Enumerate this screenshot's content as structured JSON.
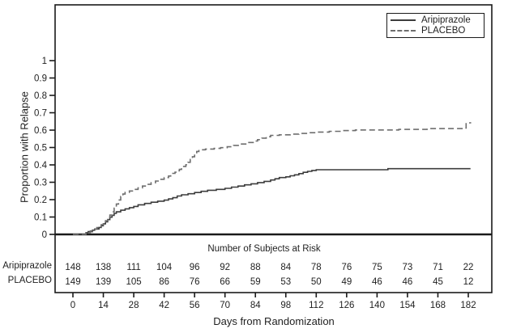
{
  "axes": {
    "x_title": "Days from Randomization",
    "y_title": "Proportion with Relapse"
  },
  "legend": {
    "items": [
      {
        "label": "Aripiprazole",
        "style": "solid"
      },
      {
        "label": "PLACEBO",
        "style": "dashed"
      }
    ]
  },
  "colors": {
    "frame": "#1a1a1a",
    "text": "#1f1f1f",
    "solid_series": "#3c3c3c",
    "dashed_series": "#6e6e6e"
  },
  "chart_data": {
    "type": "line",
    "subtype": "kaplan-meier-step",
    "title": "",
    "xlabel": "Days from Randomization",
    "ylabel": "Proportion with Relapse",
    "xlim": [
      0,
      183
    ],
    "ylim": [
      0,
      1
    ],
    "grid": false,
    "legend_position": "top-right",
    "x_ticks": [
      0,
      14,
      28,
      42,
      56,
      70,
      84,
      98,
      112,
      126,
      140,
      154,
      168,
      182
    ],
    "y_tick_labels": [
      "0",
      "0.1",
      "0.2",
      "0.3",
      "0.4",
      "0.5",
      "0.6",
      "0.7",
      "0.8",
      "0.9",
      "1"
    ],
    "series": [
      {
        "name": "Aripiprazole",
        "line_style": "solid",
        "color": "#3c3c3c",
        "steps": [
          [
            0,
            0
          ],
          [
            5,
            0
          ],
          [
            6,
            0.01
          ],
          [
            7,
            0.016
          ],
          [
            9,
            0.024
          ],
          [
            10,
            0.031
          ],
          [
            12,
            0.04
          ],
          [
            13,
            0.05
          ],
          [
            14,
            0.061
          ],
          [
            15,
            0.072
          ],
          [
            16,
            0.085
          ],
          [
            17,
            0.099
          ],
          [
            18,
            0.11
          ],
          [
            19,
            0.121
          ],
          [
            20,
            0.13
          ],
          [
            22,
            0.139
          ],
          [
            24,
            0.147
          ],
          [
            26,
            0.154
          ],
          [
            28,
            0.161
          ],
          [
            30,
            0.17
          ],
          [
            33,
            0.178
          ],
          [
            36,
            0.185
          ],
          [
            39,
            0.191
          ],
          [
            42,
            0.197
          ],
          [
            44,
            0.204
          ],
          [
            46,
            0.211
          ],
          [
            48,
            0.221
          ],
          [
            50,
            0.228
          ],
          [
            53,
            0.234
          ],
          [
            56,
            0.241
          ],
          [
            59,
            0.248
          ],
          [
            62,
            0.254
          ],
          [
            66,
            0.259
          ],
          [
            70,
            0.265
          ],
          [
            73,
            0.272
          ],
          [
            76,
            0.278
          ],
          [
            79,
            0.285
          ],
          [
            82,
            0.291
          ],
          [
            85,
            0.298
          ],
          [
            88,
            0.305
          ],
          [
            91,
            0.313
          ],
          [
            93,
            0.32
          ],
          [
            95,
            0.327
          ],
          [
            98,
            0.331
          ],
          [
            100,
            0.337
          ],
          [
            102,
            0.343
          ],
          [
            104,
            0.35
          ],
          [
            106,
            0.357
          ],
          [
            108,
            0.363
          ],
          [
            110,
            0.368
          ],
          [
            112,
            0.372
          ],
          [
            145,
            0.378
          ],
          [
            183,
            0.378
          ]
        ]
      },
      {
        "name": "PLACEBO",
        "line_style": "dashed",
        "color": "#6e6e6e",
        "steps": [
          [
            0,
            0
          ],
          [
            5,
            0
          ],
          [
            6,
            0.01
          ],
          [
            8,
            0.02
          ],
          [
            10,
            0.03
          ],
          [
            11,
            0.039
          ],
          [
            12,
            0.047
          ],
          [
            13,
            0.056
          ],
          [
            14,
            0.066
          ],
          [
            15,
            0.079
          ],
          [
            16,
            0.094
          ],
          [
            17,
            0.111
          ],
          [
            18,
            0.13
          ],
          [
            19,
            0.151
          ],
          [
            20,
            0.175
          ],
          [
            21,
            0.198
          ],
          [
            22,
            0.218
          ],
          [
            23,
            0.232
          ],
          [
            24,
            0.242
          ],
          [
            26,
            0.25
          ],
          [
            28,
            0.259
          ],
          [
            30,
            0.268
          ],
          [
            32,
            0.278
          ],
          [
            34,
            0.288
          ],
          [
            36,
            0.297
          ],
          [
            38,
            0.307
          ],
          [
            40,
            0.317
          ],
          [
            42,
            0.327
          ],
          [
            44,
            0.336
          ],
          [
            45,
            0.343
          ],
          [
            46,
            0.351
          ],
          [
            47,
            0.358
          ],
          [
            48,
            0.366
          ],
          [
            49,
            0.374
          ],
          [
            50,
            0.382
          ],
          [
            51,
            0.391
          ],
          [
            52,
            0.401
          ],
          [
            53,
            0.415
          ],
          [
            54,
            0.431
          ],
          [
            55,
            0.447
          ],
          [
            56,
            0.462
          ],
          [
            57,
            0.477
          ],
          [
            58,
            0.487
          ],
          [
            61,
            0.491
          ],
          [
            65,
            0.495
          ],
          [
            68,
            0.499
          ],
          [
            71,
            0.504
          ],
          [
            74,
            0.512
          ],
          [
            77,
            0.52
          ],
          [
            80,
            0.529
          ],
          [
            83,
            0.537
          ],
          [
            85,
            0.545
          ],
          [
            87,
            0.554
          ],
          [
            89,
            0.562
          ],
          [
            91,
            0.57
          ],
          [
            95,
            0.573
          ],
          [
            100,
            0.577
          ],
          [
            104,
            0.581
          ],
          [
            108,
            0.585
          ],
          [
            112,
            0.589
          ],
          [
            118,
            0.593
          ],
          [
            124,
            0.597
          ],
          [
            130,
            0.601
          ],
          [
            150,
            0.604
          ],
          [
            163,
            0.609
          ],
          [
            180,
            0.612
          ],
          [
            181,
            0.642
          ],
          [
            183,
            0.646
          ]
        ]
      }
    ],
    "risk_table": {
      "title": "Number of Subjects at Risk",
      "at_days": [
        0,
        14,
        28,
        42,
        56,
        70,
        84,
        98,
        112,
        126,
        140,
        154,
        168,
        182
      ],
      "rows": [
        {
          "label": "Aripiprazole",
          "counts": [
            148,
            138,
            111,
            104,
            96,
            92,
            88,
            84,
            78,
            76,
            75,
            73,
            71,
            22
          ]
        },
        {
          "label": "PLACEBO",
          "counts": [
            149,
            139,
            105,
            86,
            76,
            66,
            59,
            53,
            50,
            49,
            46,
            46,
            45,
            12
          ]
        }
      ]
    }
  }
}
